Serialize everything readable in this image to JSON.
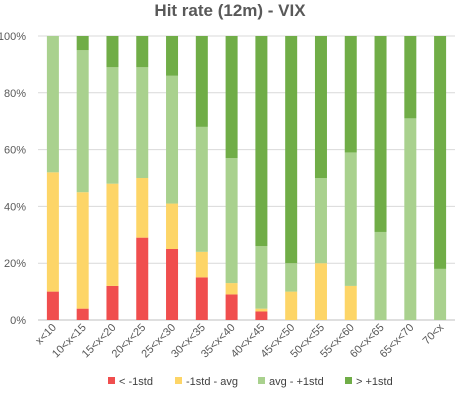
{
  "chart_data": {
    "type": "bar",
    "stacked": true,
    "title": "Hit rate (12m) - VIX",
    "xlabel": "",
    "ylabel": "",
    "ylim": [
      0,
      100
    ],
    "y_unit": "%",
    "y_ticks": [
      "0%",
      "20%",
      "40%",
      "60%",
      "80%",
      "100%"
    ],
    "grid": true,
    "legend": "bottom",
    "categories": [
      "x<10",
      "10<x<15",
      "15<x<20",
      "20<x<25",
      "25<x<30",
      "30<x<35",
      "35<x<40",
      "40<x<45",
      "45<x<50",
      "50<x<55",
      "55<x<60",
      "60<x<65",
      "65<x<70",
      "70<x"
    ],
    "series": [
      {
        "name": "< -1std",
        "color": "#f04e4e",
        "values": [
          10,
          4,
          12,
          29,
          25,
          15,
          9,
          3,
          0,
          0,
          0,
          0,
          0,
          0
        ]
      },
      {
        "name": "-1std - avg",
        "color": "#fdd567",
        "values": [
          42,
          41,
          36,
          21,
          16,
          9,
          4,
          1,
          10,
          20,
          12,
          0,
          0,
          0
        ]
      },
      {
        "name": "avg - +1std",
        "color": "#a9d18e",
        "values": [
          48,
          50,
          41,
          39,
          45,
          44,
          44,
          22,
          10,
          30,
          47,
          31,
          71,
          18
        ]
      },
      {
        "name": "> +1std",
        "color": "#70ad47",
        "values": [
          0,
          5,
          11,
          11,
          14,
          32,
          43,
          74,
          80,
          50,
          41,
          69,
          29,
          82
        ]
      }
    ]
  }
}
